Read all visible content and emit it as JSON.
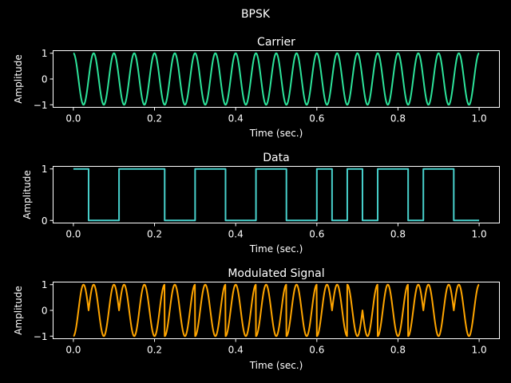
{
  "suptitle": "BPSK",
  "chart_data": [
    {
      "type": "line",
      "title": "Carrier",
      "xlabel": "Time (sec.)",
      "ylabel": "Amplitude",
      "xlim": [
        -0.05,
        1.05
      ],
      "ylim": [
        -1.1,
        1.1
      ],
      "xticks": [
        0.0,
        0.2,
        0.4,
        0.6,
        0.8,
        1.0
      ],
      "xtick_labels": [
        "0.0",
        "0.2",
        "0.4",
        "0.6",
        "0.8",
        "1.0"
      ],
      "yticks": [
        -1,
        0,
        1
      ],
      "ytick_labels": [
        "−1",
        "0",
        "1"
      ],
      "series": [
        {
          "color": "#2de39a",
          "function": "cos(2*pi*f*t)",
          "frequency_hz": 20,
          "t_range": [
            0,
            1
          ]
        }
      ]
    },
    {
      "type": "line",
      "title": "Data",
      "xlabel": "Time (sec.)",
      "ylabel": "Amplitude",
      "xlim": [
        -0.05,
        1.05
      ],
      "ylim": [
        -0.05,
        1.05
      ],
      "xticks": [
        0.0,
        0.2,
        0.4,
        0.6,
        0.8,
        1.0
      ],
      "xtick_labels": [
        "0.0",
        "0.2",
        "0.4",
        "0.6",
        "0.8",
        "1.0"
      ],
      "yticks": [
        0,
        1
      ],
      "ytick_labels": [
        "0",
        "1"
      ],
      "series": [
        {
          "color": "#48d1cc",
          "step": true,
          "x": [
            0.0,
            0.0375,
            0.1125,
            0.225,
            0.3,
            0.375,
            0.45,
            0.525,
            0.6,
            0.6375,
            0.675,
            0.7125,
            0.75,
            0.825,
            0.8625,
            0.9375,
            1.0
          ],
          "y": [
            1,
            0,
            1,
            0,
            1,
            0,
            1,
            0,
            1,
            0,
            1,
            0,
            1,
            0,
            1,
            0,
            0
          ]
        }
      ]
    },
    {
      "type": "line",
      "title": "Modulated Signal",
      "xlabel": "Time (sec.)",
      "ylabel": "Amplitude",
      "xlim": [
        -0.05,
        1.05
      ],
      "ylim": [
        -1.1,
        1.1
      ],
      "xticks": [
        0.0,
        0.2,
        0.4,
        0.6,
        0.8,
        1.0
      ],
      "xtick_labels": [
        "0.0",
        "0.2",
        "0.4",
        "0.6",
        "0.8",
        "1.0"
      ],
      "yticks": [
        -1,
        0,
        1
      ],
      "ytick_labels": [
        "−1",
        "0",
        "1"
      ],
      "series": [
        {
          "color": "#ffa500",
          "function": "carrier phase-shifted by pi when data bit is 1 (BPSK)",
          "frequency_hz": 20,
          "t_range": [
            0,
            1
          ]
        }
      ]
    }
  ]
}
